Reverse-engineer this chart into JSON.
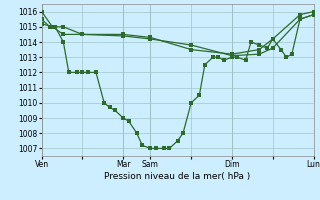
{
  "background_color": "#cceeff",
  "grid_color": "#99bbbb",
  "line_color": "#2d6a2d",
  "xlabel": "Pression niveau de la mer( hPa )",
  "ylim": [
    1006.5,
    1016.5
  ],
  "yticks": [
    1007,
    1008,
    1009,
    1010,
    1011,
    1012,
    1013,
    1014,
    1015,
    1016
  ],
  "xtick_labels": [
    "Ven",
    "",
    "Mar",
    "Sam",
    "",
    "Dim",
    "",
    "Lun"
  ],
  "xtick_positions": [
    0,
    1.5,
    3.0,
    4.0,
    5.5,
    7.0,
    8.5,
    10.0
  ],
  "line1_x": [
    0.0,
    0.4,
    0.8,
    1.5,
    3.0,
    4.0,
    5.5,
    7.0,
    8.0,
    8.5,
    9.5,
    10.0
  ],
  "line1_y": [
    1016.0,
    1015.0,
    1015.0,
    1014.5,
    1014.5,
    1014.3,
    1013.5,
    1013.2,
    1013.5,
    1014.2,
    1015.8,
    1016.0
  ],
  "line2_x": [
    0.0,
    0.4,
    0.8,
    1.5,
    3.0,
    4.0,
    5.5,
    7.0,
    8.0,
    8.5,
    9.5,
    10.0
  ],
  "line2_y": [
    1015.2,
    1015.0,
    1014.5,
    1014.5,
    1014.4,
    1014.2,
    1013.8,
    1013.1,
    1013.2,
    1013.6,
    1015.5,
    1015.8
  ],
  "line3_x": [
    0.0,
    0.3,
    0.5,
    0.8,
    1.0,
    1.3,
    1.5,
    1.7,
    2.0,
    2.3,
    2.5,
    2.7,
    3.0,
    3.2,
    3.5,
    3.7,
    4.0,
    4.2,
    4.5,
    4.7,
    5.0,
    5.2,
    5.5,
    5.8,
    6.0,
    6.3,
    6.5,
    6.7,
    7.0,
    7.2,
    7.5,
    7.7,
    8.0,
    8.3,
    8.5,
    8.8,
    9.0,
    9.2,
    9.5,
    10.0
  ],
  "line3_y": [
    1015.5,
    1015.0,
    1015.0,
    1014.0,
    1012.0,
    1012.0,
    1012.0,
    1012.0,
    1012.0,
    1010.0,
    1009.7,
    1009.5,
    1009.0,
    1008.8,
    1008.0,
    1007.2,
    1007.0,
    1007.0,
    1007.0,
    1007.0,
    1007.5,
    1008.0,
    1010.0,
    1010.5,
    1012.5,
    1013.0,
    1013.0,
    1012.8,
    1013.0,
    1013.0,
    1012.8,
    1014.0,
    1013.8,
    1013.6,
    1014.2,
    1013.5,
    1013.0,
    1013.2,
    1015.5,
    1015.8
  ],
  "vline_positions": [
    0.0,
    3.0,
    4.0,
    7.0,
    10.0
  ],
  "xlabel_fontsize": 6.5,
  "tick_fontsize": 5.5,
  "figsize": [
    3.2,
    2.0
  ],
  "dpi": 100
}
